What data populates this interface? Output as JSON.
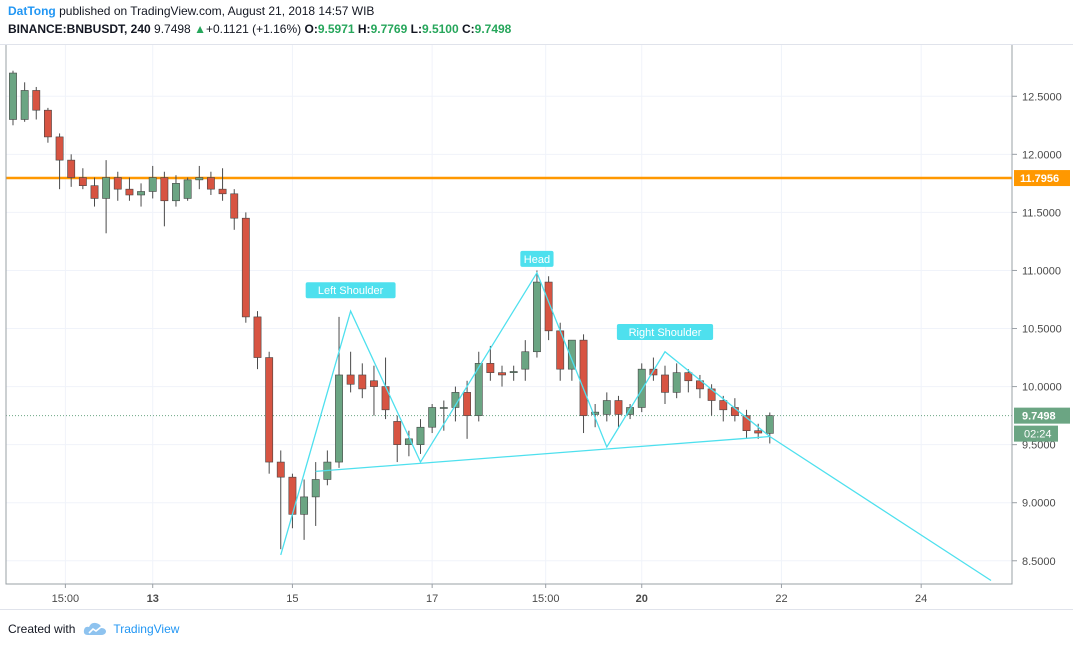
{
  "header": {
    "author": "DatTong",
    "published_text": "published on TradingView.com, August 21, 2018 14:57 WIB",
    "symbol": "BINANCE:BNBUSDT, 240",
    "last": "9.7498",
    "change_arrow": "▲",
    "change": "+0.1121 (+1.16%)",
    "o_label": "O:",
    "o_value": "9.5971",
    "h_label": "H:",
    "h_value": "9.7769",
    "l_label": "L:",
    "l_value": "9.5100",
    "c_label": "C:",
    "c_value": "9.7498"
  },
  "footer": {
    "created_with": "Created with",
    "brand": "TradingView",
    "brand_icon": "tradingview-cloud-icon"
  },
  "colors": {
    "up": "#6ba583",
    "down": "#d75442",
    "wick": "#4a4a4a",
    "pattern": "#4ee0ee",
    "resistance": "#ff9800",
    "price_label": "#6ba583",
    "axis_text": "#4a4a4a"
  },
  "chart_data": {
    "type": "candlestick",
    "timeframe": "240",
    "y_ticks": [
      "12.5000",
      "12.0000",
      "11.5000",
      "11.0000",
      "10.5000",
      "10.0000",
      "9.5000",
      "9.0000",
      "8.5000"
    ],
    "y_tick_values": [
      12.5,
      12.0,
      11.5,
      11.0,
      10.5,
      10.0,
      9.5,
      9.0,
      8.5
    ],
    "x_ticks": [
      {
        "label": "15:00",
        "x": 11.75,
        "bold": false
      },
      {
        "label": "13",
        "x": 13.0,
        "bold": true
      },
      {
        "label": "15",
        "x": 15.0,
        "bold": false
      },
      {
        "label": "17",
        "x": 17.0,
        "bold": false
      },
      {
        "label": "15:00",
        "x": 18.625,
        "bold": false
      },
      {
        "label": "20",
        "x": 20.0,
        "bold": true
      },
      {
        "label": "22",
        "x": 22.0,
        "bold": false
      },
      {
        "label": "24",
        "x": 24.0,
        "bold": false
      }
    ],
    "x_range": [
      10.9,
      25.3
    ],
    "y_range": [
      8.3,
      12.95
    ],
    "candles": [
      {
        "x": 11.0,
        "o": 12.3,
        "h": 12.72,
        "l": 12.25,
        "c": 12.7
      },
      {
        "x": 11.167,
        "o": 12.3,
        "h": 12.62,
        "l": 12.28,
        "c": 12.55
      },
      {
        "x": 11.333,
        "o": 12.55,
        "h": 12.58,
        "l": 12.3,
        "c": 12.38
      },
      {
        "x": 11.5,
        "o": 12.38,
        "h": 12.4,
        "l": 12.1,
        "c": 12.15
      },
      {
        "x": 11.667,
        "o": 12.15,
        "h": 12.18,
        "l": 11.7,
        "c": 11.95
      },
      {
        "x": 11.833,
        "o": 11.95,
        "h": 12.0,
        "l": 11.72,
        "c": 11.8
      },
      {
        "x": 12.0,
        "o": 11.8,
        "h": 11.88,
        "l": 11.7,
        "c": 11.73
      },
      {
        "x": 12.167,
        "o": 11.73,
        "h": 11.8,
        "l": 11.55,
        "c": 11.62
      },
      {
        "x": 12.333,
        "o": 11.62,
        "h": 11.95,
        "l": 11.32,
        "c": 11.8
      },
      {
        "x": 12.5,
        "o": 11.8,
        "h": 11.85,
        "l": 11.6,
        "c": 11.7
      },
      {
        "x": 12.667,
        "o": 11.7,
        "h": 11.8,
        "l": 11.6,
        "c": 11.65
      },
      {
        "x": 12.833,
        "o": 11.65,
        "h": 11.75,
        "l": 11.55,
        "c": 11.68
      },
      {
        "x": 13.0,
        "o": 11.68,
        "h": 11.9,
        "l": 11.62,
        "c": 11.8
      },
      {
        "x": 13.167,
        "o": 11.8,
        "h": 11.85,
        "l": 11.38,
        "c": 11.6
      },
      {
        "x": 13.333,
        "o": 11.6,
        "h": 11.82,
        "l": 11.55,
        "c": 11.75
      },
      {
        "x": 13.5,
        "o": 11.62,
        "h": 11.8,
        "l": 11.6,
        "c": 11.78
      },
      {
        "x": 13.667,
        "o": 11.78,
        "h": 11.9,
        "l": 11.7,
        "c": 11.8
      },
      {
        "x": 13.833,
        "o": 11.8,
        "h": 11.85,
        "l": 11.65,
        "c": 11.7
      },
      {
        "x": 14.0,
        "o": 11.7,
        "h": 11.88,
        "l": 11.6,
        "c": 11.66
      },
      {
        "x": 14.167,
        "o": 11.66,
        "h": 11.7,
        "l": 11.35,
        "c": 11.45
      },
      {
        "x": 14.333,
        "o": 11.45,
        "h": 11.5,
        "l": 10.55,
        "c": 10.6
      },
      {
        "x": 14.5,
        "o": 10.6,
        "h": 10.65,
        "l": 10.15,
        "c": 10.25
      },
      {
        "x": 14.667,
        "o": 10.25,
        "h": 10.3,
        "l": 9.25,
        "c": 9.35
      },
      {
        "x": 14.833,
        "o": 9.35,
        "h": 9.45,
        "l": 8.6,
        "c": 9.22
      },
      {
        "x": 15.0,
        "o": 9.22,
        "h": 9.25,
        "l": 8.78,
        "c": 8.9
      },
      {
        "x": 15.167,
        "o": 8.9,
        "h": 9.2,
        "l": 8.68,
        "c": 9.05
      },
      {
        "x": 15.333,
        "o": 9.05,
        "h": 9.35,
        "l": 8.8,
        "c": 9.2
      },
      {
        "x": 15.5,
        "o": 9.2,
        "h": 9.45,
        "l": 9.15,
        "c": 9.35
      },
      {
        "x": 15.667,
        "o": 9.35,
        "h": 10.6,
        "l": 9.3,
        "c": 10.1
      },
      {
        "x": 15.833,
        "o": 10.1,
        "h": 10.3,
        "l": 9.95,
        "c": 10.02
      },
      {
        "x": 16.0,
        "o": 10.1,
        "h": 10.2,
        "l": 9.9,
        "c": 9.98
      },
      {
        "x": 16.167,
        "o": 10.05,
        "h": 10.18,
        "l": 9.75,
        "c": 10.0
      },
      {
        "x": 16.333,
        "o": 10.0,
        "h": 10.25,
        "l": 9.72,
        "c": 9.8
      },
      {
        "x": 16.5,
        "o": 9.7,
        "h": 9.75,
        "l": 9.35,
        "c": 9.5
      },
      {
        "x": 16.667,
        "o": 9.5,
        "h": 9.62,
        "l": 9.4,
        "c": 9.55
      },
      {
        "x": 16.833,
        "o": 9.5,
        "h": 9.72,
        "l": 9.42,
        "c": 9.65
      },
      {
        "x": 17.0,
        "o": 9.65,
        "h": 9.85,
        "l": 9.6,
        "c": 9.82
      },
      {
        "x": 17.167,
        "o": 9.82,
        "h": 9.88,
        "l": 9.62,
        "c": 9.82
      },
      {
        "x": 17.333,
        "o": 9.82,
        "h": 10.0,
        "l": 9.7,
        "c": 9.95
      },
      {
        "x": 17.5,
        "o": 9.95,
        "h": 10.05,
        "l": 9.55,
        "c": 9.75
      },
      {
        "x": 17.667,
        "o": 9.75,
        "h": 10.3,
        "l": 9.7,
        "c": 10.2
      },
      {
        "x": 17.833,
        "o": 10.2,
        "h": 10.35,
        "l": 10.05,
        "c": 10.12
      },
      {
        "x": 18.0,
        "o": 10.12,
        "h": 10.18,
        "l": 10.0,
        "c": 10.1
      },
      {
        "x": 18.167,
        "o": 10.12,
        "h": 10.18,
        "l": 10.05,
        "c": 10.13
      },
      {
        "x": 18.333,
        "o": 10.15,
        "h": 10.4,
        "l": 10.05,
        "c": 10.3
      },
      {
        "x": 18.5,
        "o": 10.3,
        "h": 11.0,
        "l": 10.25,
        "c": 10.9
      },
      {
        "x": 18.667,
        "o": 10.9,
        "h": 10.95,
        "l": 10.4,
        "c": 10.48
      },
      {
        "x": 18.833,
        "o": 10.48,
        "h": 10.55,
        "l": 10.05,
        "c": 10.15
      },
      {
        "x": 19.0,
        "o": 10.15,
        "h": 10.4,
        "l": 10.05,
        "c": 10.4
      },
      {
        "x": 19.167,
        "o": 10.4,
        "h": 10.45,
        "l": 9.6,
        "c": 9.75
      },
      {
        "x": 19.333,
        "o": 9.76,
        "h": 9.85,
        "l": 9.65,
        "c": 9.78
      },
      {
        "x": 19.5,
        "o": 9.76,
        "h": 9.95,
        "l": 9.7,
        "c": 9.88
      },
      {
        "x": 19.667,
        "o": 9.88,
        "h": 9.92,
        "l": 9.65,
        "c": 9.76
      },
      {
        "x": 19.833,
        "o": 9.76,
        "h": 9.85,
        "l": 9.72,
        "c": 9.82
      },
      {
        "x": 20.0,
        "o": 9.82,
        "h": 10.2,
        "l": 9.78,
        "c": 10.15
      },
      {
        "x": 20.167,
        "o": 10.15,
        "h": 10.25,
        "l": 10.05,
        "c": 10.1
      },
      {
        "x": 20.333,
        "o": 10.1,
        "h": 10.18,
        "l": 9.85,
        "c": 9.95
      },
      {
        "x": 20.5,
        "o": 9.95,
        "h": 10.2,
        "l": 9.9,
        "c": 10.12
      },
      {
        "x": 20.667,
        "o": 10.12,
        "h": 10.15,
        "l": 9.95,
        "c": 10.05
      },
      {
        "x": 20.833,
        "o": 10.05,
        "h": 10.1,
        "l": 9.9,
        "c": 9.98
      },
      {
        "x": 21.0,
        "o": 9.98,
        "h": 10.02,
        "l": 9.75,
        "c": 9.88
      },
      {
        "x": 21.167,
        "o": 9.88,
        "h": 9.92,
        "l": 9.7,
        "c": 9.8
      },
      {
        "x": 21.333,
        "o": 9.82,
        "h": 9.9,
        "l": 9.7,
        "c": 9.75
      },
      {
        "x": 21.5,
        "o": 9.75,
        "h": 9.8,
        "l": 9.55,
        "c": 9.62
      },
      {
        "x": 21.667,
        "o": 9.62,
        "h": 9.68,
        "l": 9.55,
        "c": 9.6
      },
      {
        "x": 21.833,
        "o": 9.5971,
        "h": 9.7769,
        "l": 9.51,
        "c": 9.7498
      }
    ],
    "horizontal_line": {
      "value": 11.7956,
      "label": "11.7956"
    },
    "last_price": {
      "value": 9.7498,
      "label": "9.7498",
      "countdown": "02:24"
    },
    "pattern_path": [
      [
        14.833,
        8.55
      ],
      [
        15.833,
        10.65
      ],
      [
        16.833,
        9.35
      ],
      [
        18.5,
        10.98
      ],
      [
        19.5,
        9.48
      ],
      [
        20.333,
        10.3
      ],
      [
        21.833,
        9.57
      ],
      [
        25.0,
        8.33
      ]
    ],
    "neckline": [
      [
        15.333,
        9.27
      ],
      [
        21.833,
        9.57
      ]
    ],
    "annotations": [
      {
        "text": "Left Shoulder",
        "x": 15.833,
        "y": 10.83
      },
      {
        "text": "Head",
        "x": 18.5,
        "y": 11.1
      },
      {
        "text": "Right Shoulder",
        "x": 20.333,
        "y": 10.47
      }
    ]
  }
}
